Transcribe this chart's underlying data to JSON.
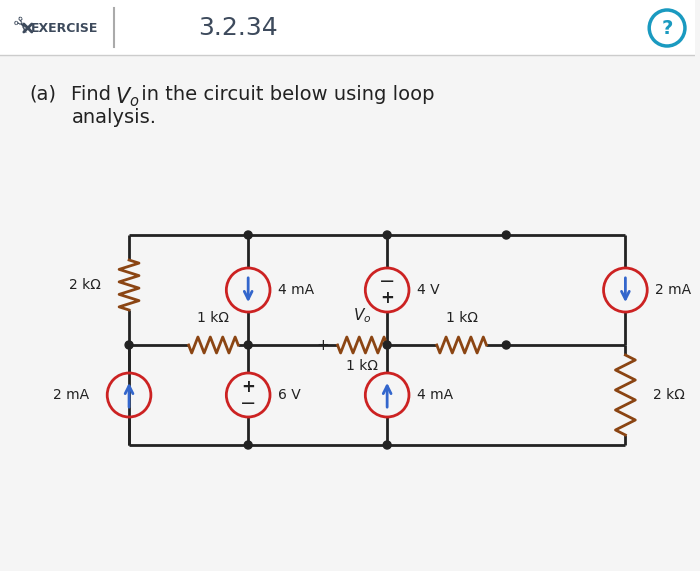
{
  "bg_color": "#f5f5f5",
  "header_bg": "#ffffff",
  "title_text": "EXERCISE",
  "exercise_num": "3.2.34",
  "problem_text_1": "(a)  Find ",
  "problem_Vo": "V",
  "problem_text_2": " in the circuit below using loop",
  "problem_text_3": "analysis.",
  "circuit_line_color": "#222222",
  "resistor_color": "#8B4513",
  "current_source_color": "#cc2222",
  "voltage_source_color": "#cc2222",
  "arrow_color": "#3366cc",
  "header_line_color": "#cccccc",
  "question_mark_color": "#1a9ac0"
}
